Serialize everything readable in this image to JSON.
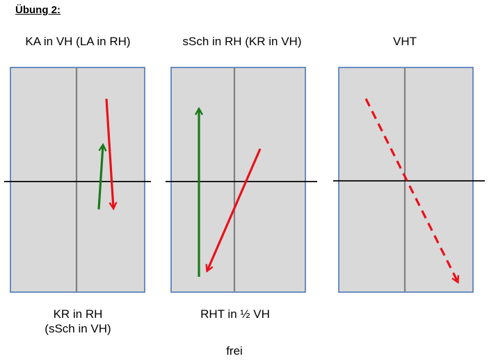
{
  "heading": "Übung 2:",
  "panels": [
    {
      "title": "KA in VH (LA in RH)",
      "caption_lines": [
        "KR in RH",
        "(sSch in VH)"
      ],
      "arrows": [
        {
          "color": "#1a7a1a",
          "style": "solid",
          "direction": "up"
        },
        {
          "color": "#e8111a",
          "style": "solid",
          "direction": "down"
        }
      ]
    },
    {
      "title": "sSch in RH (KR in VH)",
      "caption_lines": [
        "RHT in ½ VH"
      ],
      "arrows": [
        {
          "color": "#1a7a1a",
          "style": "solid",
          "direction": "up"
        },
        {
          "color": "#e8111a",
          "style": "solid",
          "direction": "down"
        }
      ]
    },
    {
      "title": "VHT",
      "caption_lines": [],
      "arrows": [
        {
          "color": "#e8111a",
          "style": "dashed",
          "direction": "down"
        }
      ]
    }
  ],
  "footer": "frei",
  "colors": {
    "panel_fill": "#d9d9d9",
    "panel_border": "#4a74b8",
    "divider": "#808080",
    "axis": "#000000"
  }
}
